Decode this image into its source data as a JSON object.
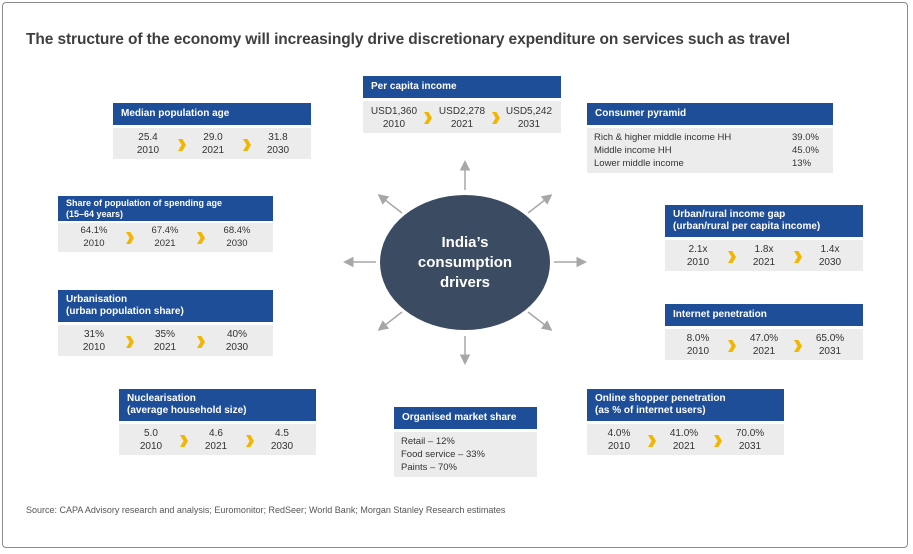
{
  "title": "The structure of the economy will increasingly drive discretionary expenditure on services such as travel",
  "center": "India’s\nconsumption\ndrivers",
  "source": "Source: CAPA Advisory research and analysis; Euromonitor; RedSeer; World Bank; Morgan Stanley Research estimates",
  "colors": {
    "header": "#1f4e99",
    "chevron": "#f2b600",
    "body": "#ececec",
    "center": "#3b4b62"
  },
  "cards": {
    "median_age": {
      "title": "Median population age",
      "values": [
        {
          "value": "25.4",
          "year": "2010"
        },
        {
          "value": "29.0",
          "year": "2021"
        },
        {
          "value": "31.8",
          "year": "2030"
        }
      ]
    },
    "per_capita": {
      "title": "Per capita income",
      "values": [
        {
          "value": "USD1,360",
          "year": "2010"
        },
        {
          "value": "USD2,278",
          "year": "2021"
        },
        {
          "value": "USD5,242",
          "year": "2031"
        }
      ]
    },
    "consumer_pyramid": {
      "title": "Consumer pyramid",
      "rows": [
        {
          "label": "Rich & higher middle income HH",
          "value": "39.0%"
        },
        {
          "label": "Middle income HH",
          "value": "45.0%"
        },
        {
          "label": "Lower middle income",
          "value": "13%"
        }
      ]
    },
    "spending_age": {
      "title_line1": "Share of population of spending age",
      "title_line2": "(15–64 years)",
      "values": [
        {
          "value": "64.1%",
          "year": "2010"
        },
        {
          "value": "67.4%",
          "year": "2021"
        },
        {
          "value": "68.4%",
          "year": "2030"
        }
      ]
    },
    "income_gap": {
      "title_line1": "Urban/rural income gap",
      "title_line2": "(urban/rural per capita income)",
      "values": [
        {
          "value": "2.1x",
          "year": "2010"
        },
        {
          "value": "1.8x",
          "year": "2021"
        },
        {
          "value": "1.4x",
          "year": "2030"
        }
      ]
    },
    "urbanisation": {
      "title_line1": "Urbanisation",
      "title_line2": "(urban population share)",
      "values": [
        {
          "value": "31%",
          "year": "2010"
        },
        {
          "value": "35%",
          "year": "2021"
        },
        {
          "value": "40%",
          "year": "2030"
        }
      ]
    },
    "internet": {
      "title": "Internet penetration",
      "values": [
        {
          "value": "8.0%",
          "year": "2010"
        },
        {
          "value": "47.0%",
          "year": "2021"
        },
        {
          "value": "65.0%",
          "year": "2031"
        }
      ]
    },
    "nuclearisation": {
      "title_line1": "Nuclearisation",
      "title_line2": "(average household size)",
      "values": [
        {
          "value": "5.0",
          "year": "2010"
        },
        {
          "value": "4.6",
          "year": "2021"
        },
        {
          "value": "4.5",
          "year": "2030"
        }
      ]
    },
    "organised": {
      "title": "Organised market share",
      "lines": [
        "Retail – 12%",
        "Food service – 33%",
        "Paints – 70%"
      ]
    },
    "online_shopper": {
      "title_line1": "Online shopper penetration",
      "title_line2": "(as % of internet users)",
      "values": [
        {
          "value": "4.0%",
          "year": "2010"
        },
        {
          "value": "41.0%",
          "year": "2021"
        },
        {
          "value": "70.0%",
          "year": "2031"
        }
      ]
    }
  }
}
